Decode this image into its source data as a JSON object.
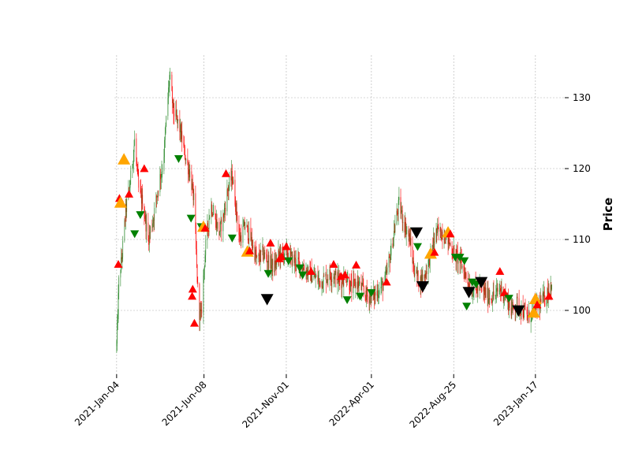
{
  "chart_data": {
    "type": "candlestick",
    "ylabel": "Price",
    "y_axis_side": "right",
    "ylim": [
      91,
      136
    ],
    "xlim": [
      "2020-12-31",
      "2023-03-10"
    ],
    "grid": true,
    "colors": {
      "up": "#2e8b2e",
      "down": "#ff0000",
      "grid": "#b0b0b0",
      "marker_up_red": "#ff0000",
      "marker_down_green": "#008000",
      "marker_up_orange": "#ffa500",
      "marker_down_black": "#000000"
    },
    "x_ticks": [
      {
        "date": "2021-01-04",
        "label": "2021-Jan-04"
      },
      {
        "date": "2021-06-08",
        "label": "2021-Jun-08"
      },
      {
        "date": "2021-11-01",
        "label": "2021-Nov-01"
      },
      {
        "date": "2022-04-01",
        "label": "2022-Apr-01"
      },
      {
        "date": "2022-08-25",
        "label": "2022-Aug-25"
      },
      {
        "date": "2023-01-17",
        "label": "2023-Jan-17"
      }
    ],
    "y_ticks": [
      100,
      110,
      120,
      130
    ],
    "price_path": [
      [
        "2021-01-04",
        95
      ],
      [
        "2021-01-08",
        104
      ],
      [
        "2021-01-14",
        108
      ],
      [
        "2021-01-20",
        114
      ],
      [
        "2021-01-28",
        118
      ],
      [
        "2021-02-05",
        124
      ],
      [
        "2021-02-12",
        117
      ],
      [
        "2021-02-20",
        115
      ],
      [
        "2021-03-01",
        110
      ],
      [
        "2021-03-10",
        113
      ],
      [
        "2021-03-20",
        118
      ],
      [
        "2021-03-28",
        121
      ],
      [
        "2021-04-03",
        128
      ],
      [
        "2021-04-08",
        133
      ],
      [
        "2021-04-15",
        128
      ],
      [
        "2021-04-25",
        126
      ],
      [
        "2021-05-05",
        122
      ],
      [
        "2021-05-15",
        119
      ],
      [
        "2021-05-22",
        115
      ],
      [
        "2021-05-26",
        106
      ],
      [
        "2021-05-30",
        100
      ],
      [
        "2021-06-03",
        99
      ],
      [
        "2021-06-08",
        106
      ],
      [
        "2021-06-12",
        110
      ],
      [
        "2021-06-20",
        115
      ],
      [
        "2021-06-28",
        113
      ],
      [
        "2021-07-05",
        111
      ],
      [
        "2021-07-12",
        113
      ],
      [
        "2021-07-20",
        117
      ],
      [
        "2021-07-28",
        119
      ],
      [
        "2021-08-03",
        115
      ],
      [
        "2021-08-10",
        110
      ],
      [
        "2021-08-20",
        112
      ],
      [
        "2021-08-30",
        110
      ],
      [
        "2021-09-10",
        107
      ],
      [
        "2021-09-20",
        108
      ],
      [
        "2021-10-01",
        107
      ],
      [
        "2021-10-10",
        106
      ],
      [
        "2021-10-20",
        108
      ],
      [
        "2021-11-01",
        108
      ],
      [
        "2021-11-15",
        107
      ],
      [
        "2021-12-01",
        106
      ],
      [
        "2021-12-15",
        105
      ],
      [
        "2022-01-01",
        104
      ],
      [
        "2022-01-15",
        105
      ],
      [
        "2022-01-25",
        105
      ],
      [
        "2022-02-05",
        104
      ],
      [
        "2022-02-15",
        105
      ],
      [
        "2022-02-25",
        103
      ],
      [
        "2022-03-05",
        104
      ],
      [
        "2022-03-15",
        103
      ],
      [
        "2022-03-25",
        102
      ],
      [
        "2022-04-05",
        102
      ],
      [
        "2022-04-15",
        103
      ],
      [
        "2022-04-25",
        104
      ],
      [
        "2022-05-05",
        108
      ],
      [
        "2022-05-15",
        113
      ],
      [
        "2022-05-20",
        115
      ],
      [
        "2022-05-30",
        112
      ],
      [
        "2022-06-08",
        110
      ],
      [
        "2022-06-15",
        106
      ],
      [
        "2022-06-25",
        104
      ],
      [
        "2022-07-05",
        105
      ],
      [
        "2022-07-15",
        108
      ],
      [
        "2022-07-25",
        111
      ],
      [
        "2022-08-05",
        111
      ],
      [
        "2022-08-15",
        110
      ],
      [
        "2022-08-25",
        108
      ],
      [
        "2022-09-05",
        107
      ],
      [
        "2022-09-15",
        105
      ],
      [
        "2022-09-25",
        103
      ],
      [
        "2022-10-05",
        103
      ],
      [
        "2022-10-15",
        103
      ],
      [
        "2022-10-25",
        102
      ],
      [
        "2022-11-05",
        102
      ],
      [
        "2022-11-15",
        103
      ],
      [
        "2022-11-25",
        102
      ],
      [
        "2022-12-05",
        100
      ],
      [
        "2022-12-15",
        101
      ],
      [
        "2022-12-25",
        100
      ],
      [
        "2023-01-05",
        99
      ],
      [
        "2023-01-15",
        100
      ],
      [
        "2023-01-25",
        101
      ],
      [
        "2023-02-05",
        102
      ],
      [
        "2023-02-15",
        104
      ]
    ],
    "markers": [
      {
        "date": "2021-01-07",
        "price": 106.5,
        "shape": "triangle-up",
        "color": "#ff0000",
        "size": "small"
      },
      {
        "date": "2021-01-09",
        "price": 115.8,
        "shape": "triangle-up",
        "color": "#ff0000",
        "size": "small"
      },
      {
        "date": "2021-01-11",
        "price": 115.2,
        "shape": "triangle-up",
        "color": "#ffa500",
        "size": "large"
      },
      {
        "date": "2021-01-17",
        "price": 121.3,
        "shape": "triangle-up",
        "color": "#ffa500",
        "size": "large"
      },
      {
        "date": "2021-01-26",
        "price": 116.4,
        "shape": "triangle-up",
        "color": "#ff0000",
        "size": "small"
      },
      {
        "date": "2021-02-05",
        "price": 110.8,
        "shape": "triangle-down",
        "color": "#008000",
        "size": "small"
      },
      {
        "date": "2021-02-15",
        "price": 113.5,
        "shape": "triangle-down",
        "color": "#008000",
        "size": "small"
      },
      {
        "date": "2021-02-22",
        "price": 120.0,
        "shape": "triangle-up",
        "color": "#ff0000",
        "size": "small"
      },
      {
        "date": "2021-04-24",
        "price": 121.4,
        "shape": "triangle-down",
        "color": "#008000",
        "size": "small"
      },
      {
        "date": "2021-05-16",
        "price": 113.0,
        "shape": "triangle-down",
        "color": "#008000",
        "size": "small"
      },
      {
        "date": "2021-05-18",
        "price": 102.0,
        "shape": "triangle-up",
        "color": "#ff0000",
        "size": "small"
      },
      {
        "date": "2021-05-19",
        "price": 103.0,
        "shape": "triangle-up",
        "color": "#ff0000",
        "size": "small"
      },
      {
        "date": "2021-05-22",
        "price": 98.2,
        "shape": "triangle-up",
        "color": "#ff0000",
        "size": "small"
      },
      {
        "date": "2021-06-03",
        "price": 111.8,
        "shape": "triangle-down",
        "color": "#008000",
        "size": "small"
      },
      {
        "date": "2021-06-07",
        "price": 111.8,
        "shape": "triangle-up",
        "color": "#ffa500",
        "size": "large"
      },
      {
        "date": "2021-06-10",
        "price": 111.6,
        "shape": "triangle-up",
        "color": "#ff0000",
        "size": "small"
      },
      {
        "date": "2021-07-17",
        "price": 119.3,
        "shape": "triangle-up",
        "color": "#ff0000",
        "size": "small"
      },
      {
        "date": "2021-07-28",
        "price": 110.2,
        "shape": "triangle-down",
        "color": "#008000",
        "size": "small"
      },
      {
        "date": "2021-08-24",
        "price": 108.3,
        "shape": "triangle-up",
        "color": "#ffa500",
        "size": "large"
      },
      {
        "date": "2021-08-28",
        "price": 108.4,
        "shape": "triangle-up",
        "color": "#ff0000",
        "size": "small"
      },
      {
        "date": "2021-09-28",
        "price": 101.6,
        "shape": "triangle-down",
        "color": "#000000",
        "size": "large"
      },
      {
        "date": "2021-09-30",
        "price": 105.2,
        "shape": "triangle-down",
        "color": "#008000",
        "size": "small"
      },
      {
        "date": "2021-10-04",
        "price": 109.5,
        "shape": "triangle-up",
        "color": "#ff0000",
        "size": "small"
      },
      {
        "date": "2021-10-20",
        "price": 107.3,
        "shape": "triangle-up",
        "color": "#ff0000",
        "size": "small"
      },
      {
        "date": "2021-10-24",
        "price": 107.6,
        "shape": "triangle-up",
        "color": "#ff0000",
        "size": "small"
      },
      {
        "date": "2021-11-01",
        "price": 109.0,
        "shape": "triangle-up",
        "color": "#ff0000",
        "size": "small"
      },
      {
        "date": "2021-11-05",
        "price": 107.0,
        "shape": "triangle-down",
        "color": "#008000",
        "size": "small"
      },
      {
        "date": "2021-11-25",
        "price": 106.0,
        "shape": "triangle-down",
        "color": "#008000",
        "size": "small"
      },
      {
        "date": "2021-11-30",
        "price": 105.0,
        "shape": "triangle-down",
        "color": "#008000",
        "size": "small"
      },
      {
        "date": "2021-12-15",
        "price": 105.5,
        "shape": "triangle-up",
        "color": "#ff0000",
        "size": "small"
      },
      {
        "date": "2022-01-24",
        "price": 106.5,
        "shape": "triangle-up",
        "color": "#ff0000",
        "size": "small"
      },
      {
        "date": "2022-02-06",
        "price": 104.8,
        "shape": "triangle-up",
        "color": "#ff0000",
        "size": "small"
      },
      {
        "date": "2022-02-13",
        "price": 105.0,
        "shape": "triangle-up",
        "color": "#ff0000",
        "size": "small"
      },
      {
        "date": "2022-02-17",
        "price": 101.5,
        "shape": "triangle-down",
        "color": "#008000",
        "size": "small"
      },
      {
        "date": "2022-03-05",
        "price": 106.4,
        "shape": "triangle-up",
        "color": "#ff0000",
        "size": "small"
      },
      {
        "date": "2022-03-12",
        "price": 102.0,
        "shape": "triangle-down",
        "color": "#008000",
        "size": "small"
      },
      {
        "date": "2022-04-01",
        "price": 102.5,
        "shape": "triangle-down",
        "color": "#008000",
        "size": "small"
      },
      {
        "date": "2022-04-28",
        "price": 104.0,
        "shape": "triangle-up",
        "color": "#ff0000",
        "size": "small"
      },
      {
        "date": "2022-06-20",
        "price": 111.0,
        "shape": "triangle-down",
        "color": "#000000",
        "size": "large"
      },
      {
        "date": "2022-06-22",
        "price": 109.0,
        "shape": "triangle-down",
        "color": "#008000",
        "size": "small"
      },
      {
        "date": "2022-07-01",
        "price": 103.4,
        "shape": "triangle-down",
        "color": "#000000",
        "size": "large"
      },
      {
        "date": "2022-07-15",
        "price": 108.0,
        "shape": "triangle-up",
        "color": "#ffa500",
        "size": "large"
      },
      {
        "date": "2022-07-22",
        "price": 108.2,
        "shape": "triangle-up",
        "color": "#ff0000",
        "size": "small"
      },
      {
        "date": "2022-08-15",
        "price": 111.0,
        "shape": "triangle-up",
        "color": "#ffa500",
        "size": "large"
      },
      {
        "date": "2022-08-19",
        "price": 110.8,
        "shape": "triangle-up",
        "color": "#ff0000",
        "size": "small"
      },
      {
        "date": "2022-08-28",
        "price": 107.5,
        "shape": "triangle-down",
        "color": "#008000",
        "size": "small"
      },
      {
        "date": "2022-09-05",
        "price": 107.5,
        "shape": "triangle-down",
        "color": "#008000",
        "size": "small"
      },
      {
        "date": "2022-09-13",
        "price": 107.0,
        "shape": "triangle-down",
        "color": "#008000",
        "size": "small"
      },
      {
        "date": "2022-09-17",
        "price": 100.6,
        "shape": "triangle-down",
        "color": "#008000",
        "size": "small"
      },
      {
        "date": "2022-09-21",
        "price": 102.6,
        "shape": "triangle-down",
        "color": "#000000",
        "size": "large"
      },
      {
        "date": "2022-09-27",
        "price": 104.0,
        "shape": "triangle-down",
        "color": "#008000",
        "size": "small"
      },
      {
        "date": "2022-10-04",
        "price": 103.7,
        "shape": "triangle-down",
        "color": "#008000",
        "size": "small"
      },
      {
        "date": "2022-10-13",
        "price": 104.0,
        "shape": "triangle-down",
        "color": "#000000",
        "size": "large"
      },
      {
        "date": "2022-11-15",
        "price": 105.5,
        "shape": "triangle-up",
        "color": "#ff0000",
        "size": "small"
      },
      {
        "date": "2022-11-23",
        "price": 102.5,
        "shape": "triangle-up",
        "color": "#ff0000",
        "size": "small"
      },
      {
        "date": "2022-12-01",
        "price": 101.7,
        "shape": "triangle-down",
        "color": "#008000",
        "size": "small"
      },
      {
        "date": "2022-12-18",
        "price": 100.0,
        "shape": "triangle-down",
        "color": "#000000",
        "size": "large"
      },
      {
        "date": "2023-01-14",
        "price": 99.7,
        "shape": "triangle-up",
        "color": "#ffa500",
        "size": "large"
      },
      {
        "date": "2023-01-17",
        "price": 101.6,
        "shape": "triangle-up",
        "color": "#ffa500",
        "size": "large"
      },
      {
        "date": "2023-01-20",
        "price": 100.8,
        "shape": "triangle-up",
        "color": "#ff0000",
        "size": "small"
      },
      {
        "date": "2023-02-10",
        "price": 102.0,
        "shape": "triangle-up",
        "color": "#ff0000",
        "size": "small"
      }
    ]
  }
}
